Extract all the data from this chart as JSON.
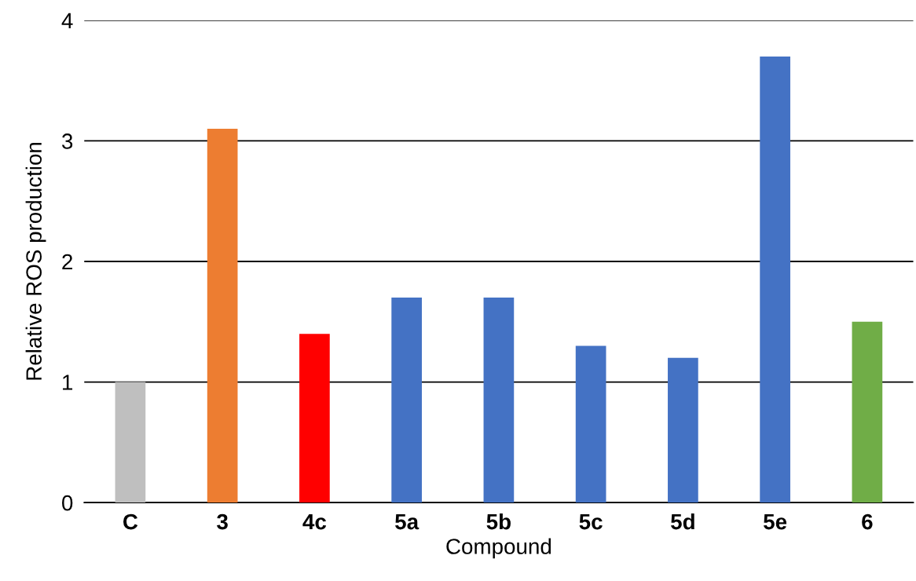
{
  "chart_data": {
    "type": "bar",
    "xlabel": "Compound",
    "ylabel": "Relative ROS production",
    "categories": [
      "C",
      "3",
      "4c",
      "5a",
      "5b",
      "5c",
      "5d",
      "5e",
      "6"
    ],
    "values": [
      1.0,
      3.1,
      1.4,
      1.7,
      1.7,
      1.3,
      1.2,
      3.7,
      1.5
    ],
    "colors": [
      "#bfbfbf",
      "#ed7d31",
      "#ff0000",
      "#4472c4",
      "#4472c4",
      "#4472c4",
      "#4472c4",
      "#4472c4",
      "#70ad47"
    ],
    "ylim": [
      0,
      4
    ],
    "yticks": [
      0,
      1,
      2,
      3,
      4
    ],
    "grid": "y",
    "legend": false
  }
}
